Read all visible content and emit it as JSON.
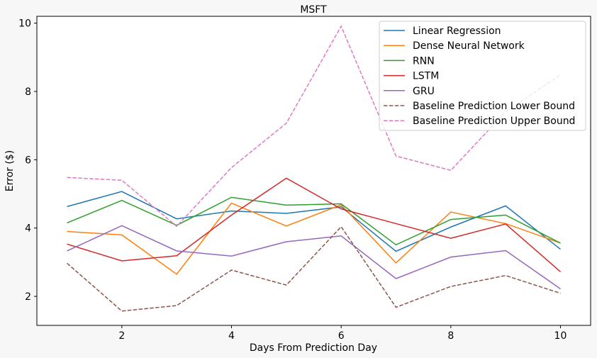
{
  "chart_data": {
    "type": "line",
    "title": "MSFT",
    "xlabel": "Days From Prediction Day",
    "ylabel": "Error ($)",
    "x": [
      1,
      2,
      3,
      4,
      5,
      6,
      7,
      8,
      9,
      10
    ],
    "xlim": [
      0.45,
      10.55
    ],
    "ylim": [
      1.15,
      10.2
    ],
    "xticks": [
      2,
      4,
      6,
      8,
      10
    ],
    "yticks": [
      2,
      4,
      6,
      8,
      10
    ],
    "grid": false,
    "legend_position": "top-right",
    "series": [
      {
        "name": "Linear Regression",
        "color": "#1f77b4",
        "dash": "solid",
        "values": [
          4.63,
          5.07,
          4.27,
          4.5,
          4.43,
          4.62,
          3.32,
          4.03,
          4.65,
          3.38
        ]
      },
      {
        "name": "Dense Neural Network",
        "color": "#ff7f0e",
        "dash": "solid",
        "values": [
          3.9,
          3.8,
          2.65,
          4.73,
          4.06,
          4.68,
          2.98,
          4.47,
          4.13,
          3.56
        ]
      },
      {
        "name": "RNN",
        "color": "#2ca02c",
        "dash": "solid",
        "values": [
          4.15,
          4.81,
          4.08,
          4.9,
          4.67,
          4.71,
          3.51,
          4.25,
          4.38,
          3.56
        ]
      },
      {
        "name": "LSTM",
        "color": "#d62728",
        "dash": "solid",
        "values": [
          3.53,
          3.04,
          3.19,
          4.38,
          5.46,
          4.56,
          4.13,
          3.7,
          4.12,
          2.72
        ]
      },
      {
        "name": "GRU",
        "color": "#9467bd",
        "dash": "solid",
        "values": [
          3.33,
          4.07,
          3.33,
          3.18,
          3.6,
          3.77,
          2.52,
          3.15,
          3.34,
          2.22
        ]
      },
      {
        "name": "Baseline Prediction Lower Bound",
        "color": "#8c564b",
        "dash": "dashed",
        "values": [
          2.97,
          1.57,
          1.73,
          2.77,
          2.33,
          4.04,
          1.68,
          2.29,
          2.61,
          2.09
        ]
      },
      {
        "name": "Baseline Prediction Upper Bound",
        "color": "#e377c2",
        "dash": "dashed",
        "values": [
          5.48,
          5.4,
          4.05,
          5.77,
          7.07,
          9.91,
          6.11,
          5.69,
          7.4,
          8.49
        ]
      }
    ]
  }
}
